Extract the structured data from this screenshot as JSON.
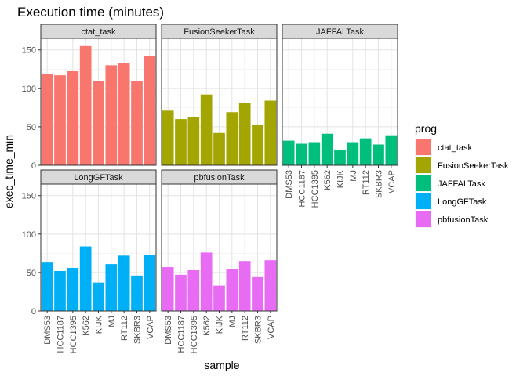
{
  "chart_data": {
    "type": "bar",
    "title": "Execution time (minutes)",
    "xlabel": "sample",
    "ylabel": "exec_time_min",
    "ylim": [
      0,
      165
    ],
    "yticks": [
      0,
      50,
      100,
      150
    ],
    "grid": true,
    "legend_title": "prog",
    "legend_position": "right",
    "categories": [
      "DMS53",
      "HCC1187",
      "HCC1395",
      "K562",
      "KIJK",
      "MJ",
      "RT112",
      "SKBR3",
      "VCAP"
    ],
    "facets": [
      {
        "name": "ctat_task",
        "color": "#F8766D",
        "values": [
          119,
          117,
          123,
          155,
          109,
          130,
          133,
          110,
          142
        ]
      },
      {
        "name": "FusionSeekerTask",
        "color": "#A3A500",
        "values": [
          71,
          60,
          63,
          92,
          42,
          69,
          81,
          53,
          84
        ]
      },
      {
        "name": "JAFFALTask",
        "color": "#00BF7D",
        "values": [
          32,
          28,
          30,
          41,
          20,
          30,
          35,
          27,
          39
        ]
      },
      {
        "name": "LongGFTask",
        "color": "#00B0F6",
        "values": [
          63,
          52,
          56,
          84,
          37,
          61,
          72,
          46,
          73
        ]
      },
      {
        "name": "pbfusionTask",
        "color": "#E76BF3",
        "values": [
          57,
          47,
          53,
          76,
          33,
          54,
          65,
          45,
          66
        ]
      }
    ]
  }
}
